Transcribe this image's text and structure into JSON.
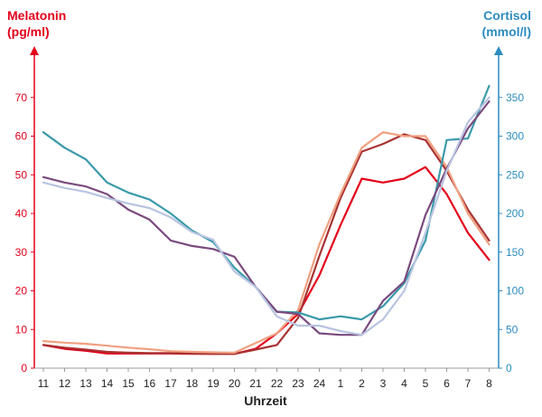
{
  "chart_data": {
    "type": "line",
    "title": "",
    "xlabel": "Uhrzeit",
    "categories": [
      "11",
      "12",
      "13",
      "14",
      "15",
      "16",
      "17",
      "18",
      "19",
      "20",
      "21",
      "22",
      "23",
      "24",
      "1",
      "2",
      "3",
      "4",
      "5",
      "6",
      "7",
      "8"
    ],
    "y_left": {
      "label_line1": "Melatonin",
      "label_line2": "(pg/ml)",
      "ylim": [
        0,
        80
      ],
      "ticks": [
        0,
        10,
        20,
        30,
        40,
        50,
        60,
        70
      ],
      "color": "#e3001b"
    },
    "y_right": {
      "label_line1": "Cortisol",
      "label_line2": "(mmol/l)",
      "ylim": [
        0,
        400
      ],
      "ticks": [
        0,
        50,
        100,
        150,
        200,
        250,
        300,
        350
      ],
      "color": "#2b8cbf"
    },
    "grid": false,
    "legend": "none",
    "series": [
      {
        "axis": "left",
        "color": "#e3001b",
        "values": [
          6,
          5,
          4.5,
          3.8,
          3.8,
          3.8,
          3.8,
          3.7,
          3.7,
          3.7,
          5,
          9,
          14,
          24,
          37,
          49,
          48,
          49,
          52,
          45,
          35,
          28
        ]
      },
      {
        "axis": "left",
        "color": "#a83232",
        "values": [
          6,
          5.3,
          4.8,
          4.2,
          4,
          3.9,
          3.9,
          3.8,
          3.7,
          3.7,
          4.8,
          6,
          13,
          29,
          44,
          56,
          58,
          60.5,
          59,
          51,
          41,
          33
        ]
      },
      {
        "axis": "left",
        "color": "#f0a080",
        "values": [
          7,
          6.6,
          6.3,
          5.8,
          5.3,
          4.9,
          4.4,
          4.2,
          4.1,
          4,
          6.5,
          9,
          15,
          32,
          45,
          57,
          61,
          60,
          60,
          52,
          40,
          32
        ]
      },
      {
        "axis": "right",
        "color": "#3a9aaa",
        "values": [
          305,
          285,
          270,
          240,
          227,
          218,
          200,
          178,
          163,
          130,
          105,
          73,
          72,
          63,
          67,
          63,
          80,
          110,
          165,
          295,
          297,
          365
        ]
      },
      {
        "axis": "right",
        "color": "#7a4a7e",
        "values": [
          247,
          240,
          235,
          225,
          205,
          192,
          165,
          158,
          154,
          144,
          105,
          73,
          70,
          45,
          43,
          43,
          87,
          112,
          198,
          258,
          310,
          345
        ]
      },
      {
        "axis": "right",
        "color": "#b8c4e0",
        "values": [
          240,
          233,
          228,
          220,
          213,
          207,
          195,
          176,
          166,
          125,
          105,
          67,
          55,
          55,
          48,
          43,
          63,
          100,
          175,
          255,
          318,
          350
        ]
      }
    ]
  }
}
